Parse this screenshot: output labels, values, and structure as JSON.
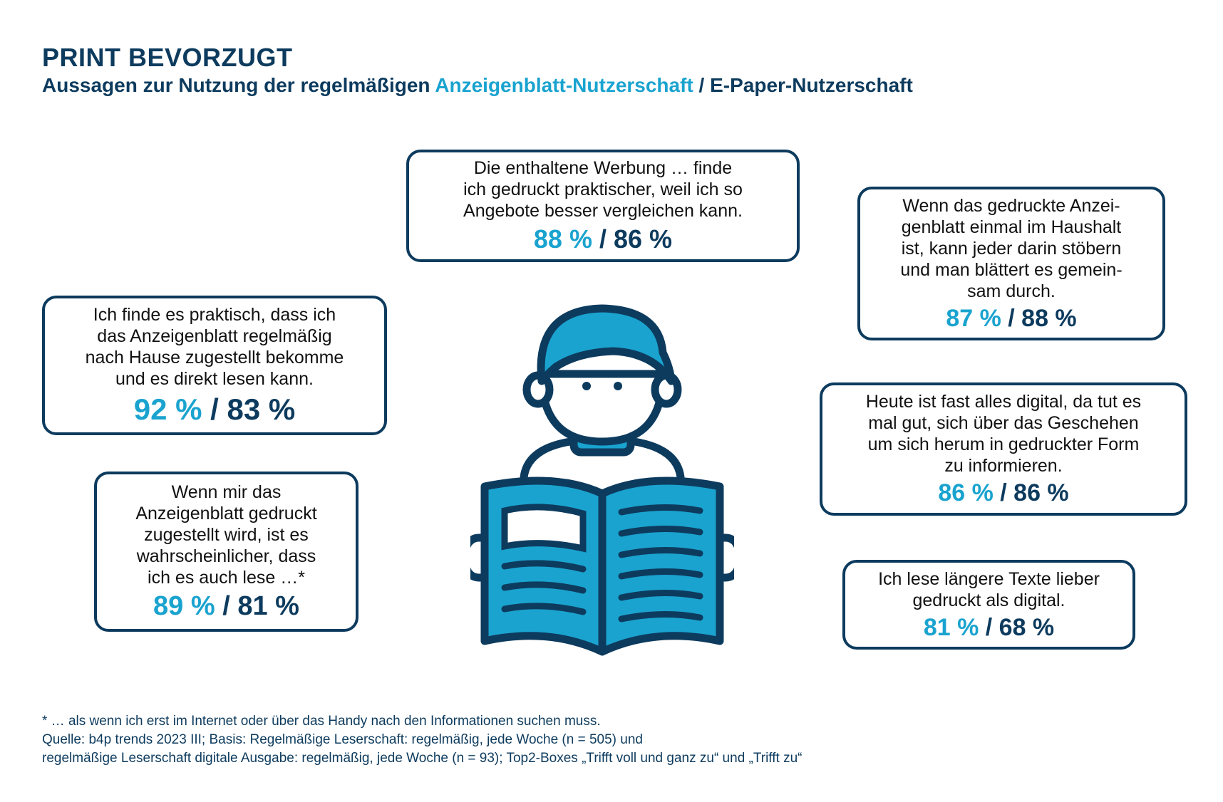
{
  "header": {
    "title": "PRINT BEVORZUGT",
    "subtitle_prefix": "Aussagen zur Nutzung der regelmäßigen",
    "subtitle_highlight": "Anzeigenblatt-Nutzerschaft",
    "subtitle_suffix": "/ E-Paper-Nutzerschaft"
  },
  "colors": {
    "anzeigenblatt": "#1aa3cf",
    "epaper": "#0d3b5e"
  },
  "statements": [
    {
      "text": "Die enthaltene Werbung … finde\nich gedruckt praktischer, weil ich so\nAngebote besser vergleichen kann.",
      "anzeigenblatt": "88 %",
      "separator": "/",
      "epaper": "86 %"
    },
    {
      "text": "Wenn das gedruckte Anzei-\ngenblatt einmal im Haushalt\nist, kann jeder darin stöbern\nund man blättert es gemein-\nsam durch.",
      "anzeigenblatt": "87 %",
      "separator": "/",
      "epaper": "88 %"
    },
    {
      "text": "Ich finde es praktisch, dass ich\ndas Anzeigenblatt regelmäßig\nnach Hause zugestellt bekomme\nund es direkt lesen kann.",
      "anzeigenblatt": "92 %",
      "separator": "/",
      "epaper": "83 %"
    },
    {
      "text": "Heute ist fast alles digital, da tut es\nmal gut, sich über das Geschehen\num sich herum in gedruckter Form\nzu informieren.",
      "anzeigenblatt": "86 %",
      "separator": "/",
      "epaper": "86 %"
    },
    {
      "text": "Wenn mir das\nAnzeigenblatt gedruckt\nzugestellt wird, ist es\nwahrscheinlicher, dass\nich es auch lese …*",
      "anzeigenblatt": "89 %",
      "separator": "/",
      "epaper": "81 %"
    },
    {
      "text": "Ich lese längere Texte lieber\ngedruckt als digital.",
      "anzeigenblatt": "81 %",
      "separator": "/",
      "epaper": "68 %"
    }
  ],
  "illustration": {
    "icon": "person-reading-newspaper-icon"
  },
  "footer": {
    "footnote": "* … als wenn ich erst im Internet oder über das Handy nach den Informationen suchen muss.",
    "source_line1": "Quelle: b4p trends 2023 III; Basis: Regelmäßige Leserschaft: regelmäßig, jede Woche (n = 505) und",
    "source_line2": "regelmäßige Leserschaft digitale Ausgabe: regelmäßig, jede Woche (n = 93); Top2-Boxes „Trifft voll und ganz zu“ und „Trifft zu“"
  }
}
